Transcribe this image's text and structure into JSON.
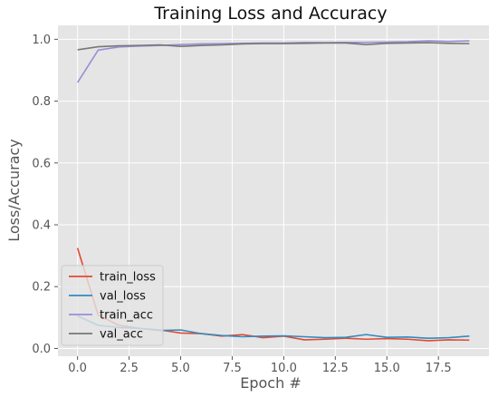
{
  "chart_data": {
    "type": "line",
    "title": "Training Loss and Accuracy",
    "xlabel": "Epoch #",
    "ylabel": "Loss/Accuracy",
    "xlim": [
      -0.95,
      19.95
    ],
    "ylim": [
      -0.025,
      1.045
    ],
    "grid": true,
    "legend_position": "lower-left",
    "x_ticks": [
      0.0,
      2.5,
      5.0,
      7.5,
      10.0,
      12.5,
      15.0,
      17.5
    ],
    "x_tick_labels": [
      "0.0",
      "2.5",
      "5.0",
      "7.5",
      "10.0",
      "12.5",
      "15.0",
      "17.5"
    ],
    "y_ticks": [
      0.0,
      0.2,
      0.4,
      0.6,
      0.8,
      1.0
    ],
    "y_tick_labels": [
      "0.0",
      "0.2",
      "0.4",
      "0.6",
      "0.8",
      "1.0"
    ],
    "x": [
      0,
      1,
      2,
      3,
      4,
      5,
      6,
      7,
      8,
      9,
      10,
      11,
      12,
      13,
      14,
      15,
      16,
      17,
      18,
      19
    ],
    "series": [
      {
        "name": "train_loss",
        "color": "#E24A33",
        "values": [
          0.325,
          0.108,
          0.075,
          0.065,
          0.06,
          0.05,
          0.048,
          0.04,
          0.045,
          0.035,
          0.04,
          0.028,
          0.03,
          0.033,
          0.03,
          0.032,
          0.03,
          0.025,
          0.028,
          0.027
        ]
      },
      {
        "name": "val_loss",
        "color": "#348ABD",
        "values": [
          0.105,
          0.075,
          0.068,
          0.065,
          0.058,
          0.06,
          0.048,
          0.042,
          0.038,
          0.04,
          0.041,
          0.038,
          0.035,
          0.036,
          0.045,
          0.036,
          0.037,
          0.033,
          0.035,
          0.04
        ]
      },
      {
        "name": "train_acc",
        "color": "#988ED5",
        "values": [
          0.86,
          0.965,
          0.975,
          0.978,
          0.98,
          0.983,
          0.985,
          0.986,
          0.987,
          0.988,
          0.988,
          0.99,
          0.989,
          0.99,
          0.99,
          0.991,
          0.992,
          0.995,
          0.993,
          0.995
        ]
      },
      {
        "name": "val_acc",
        "color": "#777777",
        "values": [
          0.966,
          0.976,
          0.979,
          0.98,
          0.982,
          0.977,
          0.98,
          0.982,
          0.985,
          0.986,
          0.986,
          0.987,
          0.988,
          0.988,
          0.983,
          0.987,
          0.988,
          0.989,
          0.987,
          0.986
        ]
      }
    ]
  }
}
